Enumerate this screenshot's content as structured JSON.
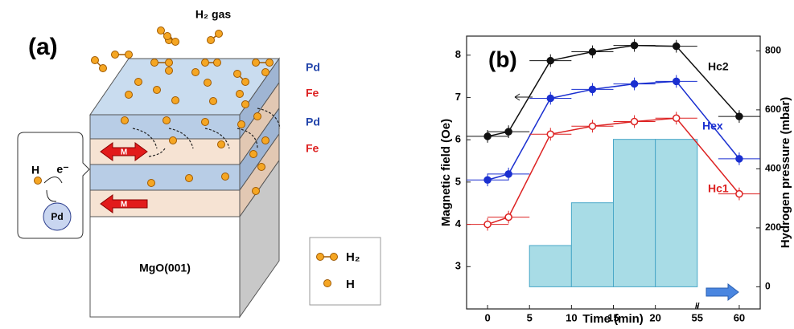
{
  "diagram": {
    "panel_label": "(a)",
    "gas_label": "H₂ gas",
    "layers": [
      "Pd",
      "Fe",
      "Pd",
      "Fe"
    ],
    "magnet_labels": [
      "M",
      "M"
    ],
    "inset": {
      "atom": "H",
      "electron": "e⁻",
      "metal": "Pd"
    },
    "substrate": "MgO(001)",
    "legend": [
      "H₂",
      "H"
    ]
  },
  "chart_data": {
    "type": "line",
    "title": "(b)",
    "xlabel": "Time (min)",
    "ylabel": "Magnetic field (Oe)",
    "y2label": "Hydrogen pressure (mbar)",
    "x": [
      0,
      2.5,
      7.5,
      12.5,
      17.5,
      22.5,
      60
    ],
    "xerr": [
      2.5,
      2.5,
      2.5,
      2.5,
      2.5,
      2.5,
      2.5
    ],
    "xlim": [
      -2.5,
      62.5
    ],
    "xbreak": [
      25,
      55
    ],
    "xticks": [
      0,
      5,
      10,
      15,
      20,
      55,
      60
    ],
    "ylim": [
      2,
      8.45
    ],
    "yticks": [
      3,
      4,
      5,
      6,
      7,
      8
    ],
    "y2lim": [
      -75,
      850
    ],
    "y2ticks": [
      0,
      200,
      400,
      600,
      800
    ],
    "series": [
      {
        "name": "Hc2",
        "color": "#111111",
        "filled": true,
        "values": [
          6.08,
          6.19,
          7.87,
          8.08,
          8.23,
          8.21,
          6.55
        ],
        "yerr": [
          0.15,
          0.15,
          0.15,
          0.15,
          0.15,
          0.15,
          0.15
        ]
      },
      {
        "name": "Hex",
        "color": "#1a2fd0",
        "filled": true,
        "values": [
          5.05,
          5.19,
          6.98,
          7.19,
          7.32,
          7.38,
          5.55
        ],
        "yerr": [
          0.15,
          0.15,
          0.15,
          0.15,
          0.15,
          0.15,
          0.15
        ]
      },
      {
        "name": "Hc1",
        "color": "#dd2222",
        "filled": false,
        "values": [
          4.0,
          4.17,
          6.13,
          6.32,
          6.43,
          6.51,
          4.72
        ],
        "yerr": [
          0.15,
          0.15,
          0.15,
          0.15,
          0.15,
          0.15,
          0.15
        ]
      }
    ],
    "bars": {
      "axis": "y2",
      "color": "#a8dce6",
      "edge": "#4aa8c8",
      "bins": [
        5,
        10,
        15,
        20,
        25
      ],
      "values": [
        140,
        285,
        500,
        500
      ]
    }
  }
}
